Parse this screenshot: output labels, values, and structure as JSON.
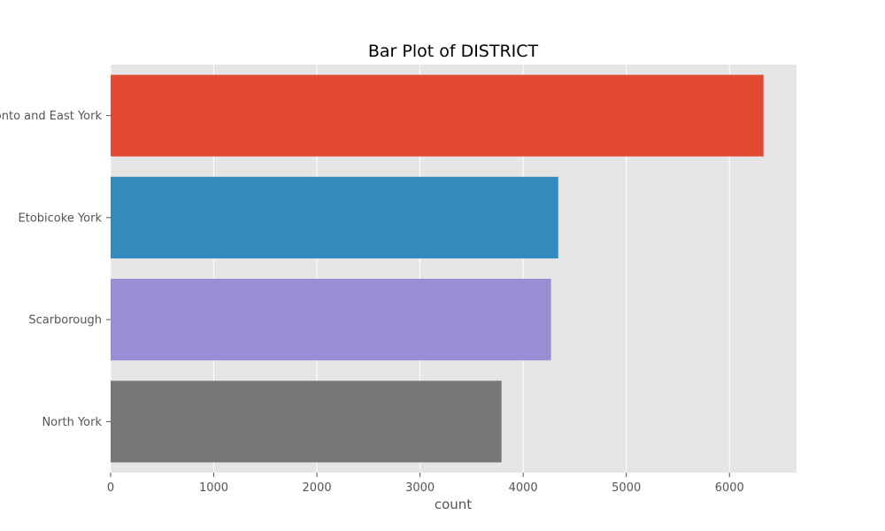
{
  "chart_data": {
    "type": "bar",
    "orientation": "horizontal",
    "title": "Bar Plot of DISTRICT",
    "xlabel": "count",
    "ylabel": "",
    "categories": [
      "Toronto and East York",
      "Etobicoke York",
      "Scarborough",
      "North York"
    ],
    "values": [
      6330,
      4340,
      4270,
      3790
    ],
    "colors": [
      "#E24A33",
      "#348ABD",
      "#988ED5",
      "#777777"
    ],
    "xlim": [
      0,
      6650
    ],
    "x_ticks": [
      0,
      1000,
      2000,
      3000,
      4000,
      5000,
      6000
    ],
    "grid": true,
    "background": "#E5E5E5",
    "grid_color": "#FFFFFF"
  }
}
